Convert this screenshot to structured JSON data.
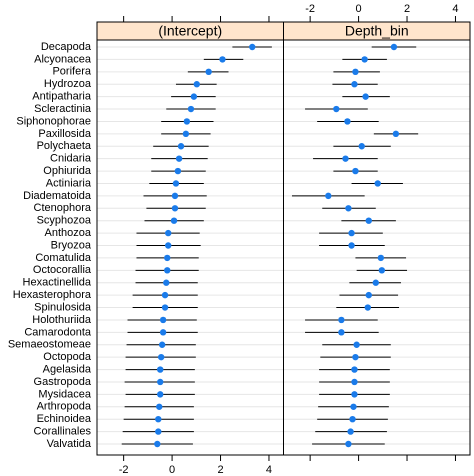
{
  "chart_data": {
    "type": "dotplot",
    "categories": [
      "Decapoda",
      "Alcyonacea",
      "Porifera",
      "Hydrozoa",
      "Antipatharia",
      "Scleractinia",
      "Siphonophorae",
      "Paxillosida",
      "Polychaeta",
      "Cnidaria",
      "Ophiurida",
      "Actiniaria",
      "Diadematoida",
      "Ctenophora",
      "Scyphozoa",
      "Anthozoa",
      "Bryozoa",
      "Comatulida",
      "Octocorallia",
      "Hexactinellida",
      "Hexasterophora",
      "Spinulosida",
      "Holothuriida",
      "Camarodonta",
      "Semaeostomeae",
      "Octopoda",
      "Agelasida",
      "Gastropoda",
      "Mysidacea",
      "Arthropoda",
      "Echinoidea",
      "Corallinales",
      "Valvatida"
    ],
    "panels": [
      {
        "name": "(Intercept)",
        "values": [
          3.31,
          2.08,
          1.51,
          1.02,
          0.9,
          0.78,
          0.61,
          0.57,
          0.37,
          0.29,
          0.24,
          0.16,
          0.12,
          0.12,
          0.08,
          -0.16,
          -0.16,
          -0.2,
          -0.2,
          -0.24,
          -0.29,
          -0.29,
          -0.37,
          -0.37,
          -0.41,
          -0.45,
          -0.49,
          -0.49,
          -0.49,
          -0.53,
          -0.57,
          -0.57,
          -0.61
        ],
        "lower": [
          2.49,
          1.31,
          0.65,
          0.16,
          -0.04,
          -0.24,
          -0.45,
          -0.45,
          -0.78,
          -0.86,
          -0.86,
          -0.94,
          -1.18,
          -1.06,
          -1.14,
          -1.47,
          -1.47,
          -1.47,
          -1.51,
          -1.51,
          -1.63,
          -1.63,
          -1.84,
          -1.84,
          -1.88,
          -1.92,
          -1.92,
          -1.96,
          -1.92,
          -1.96,
          -2.0,
          -2.04,
          -2.08
        ],
        "upper": [
          4.12,
          2.94,
          2.33,
          1.84,
          1.8,
          1.8,
          1.71,
          1.59,
          1.51,
          1.47,
          1.39,
          1.31,
          1.43,
          1.39,
          1.31,
          1.14,
          1.18,
          1.1,
          1.1,
          1.06,
          1.06,
          1.06,
          1.02,
          1.06,
          0.98,
          0.98,
          0.94,
          0.94,
          0.94,
          0.9,
          0.9,
          0.9,
          0.86
        ]
      },
      {
        "name": "Depth_bin",
        "values": [
          1.46,
          0.25,
          -0.13,
          -0.17,
          0.29,
          -0.92,
          -0.46,
          1.54,
          0.13,
          -0.54,
          -0.13,
          0.79,
          -1.25,
          -0.42,
          0.42,
          -0.29,
          -0.29,
          0.92,
          0.96,
          0.71,
          0.42,
          0.38,
          -0.71,
          -0.71,
          -0.08,
          -0.13,
          -0.17,
          -0.17,
          -0.17,
          -0.21,
          -0.25,
          -0.33,
          -0.42
        ],
        "lower": [
          0.54,
          -0.67,
          -1.04,
          -1.08,
          -0.67,
          -2.21,
          -1.71,
          0.63,
          -1.04,
          -1.88,
          -1.04,
          -0.29,
          -2.75,
          -1.5,
          -0.71,
          -1.63,
          -1.63,
          -0.13,
          -0.08,
          -0.38,
          -0.79,
          -0.92,
          -2.21,
          -2.21,
          -1.5,
          -1.58,
          -1.63,
          -1.63,
          -1.63,
          -1.67,
          -1.71,
          -1.79,
          -1.92
        ],
        "upper": [
          2.38,
          1.17,
          0.88,
          0.79,
          1.29,
          0.38,
          0.83,
          2.46,
          1.33,
          0.79,
          0.79,
          1.83,
          0.25,
          0.71,
          1.54,
          1.0,
          1.08,
          1.96,
          2.0,
          1.75,
          1.63,
          1.67,
          0.79,
          0.83,
          1.33,
          1.33,
          1.29,
          1.29,
          1.29,
          1.25,
          1.21,
          1.17,
          1.08
        ]
      }
    ],
    "xlim": [
      -3.1,
      4.6
    ],
    "xticks": [
      -2,
      0,
      2,
      4
    ],
    "color": "#1a7bea",
    "strip_color": "#ffe5cc",
    "grid": true
  }
}
